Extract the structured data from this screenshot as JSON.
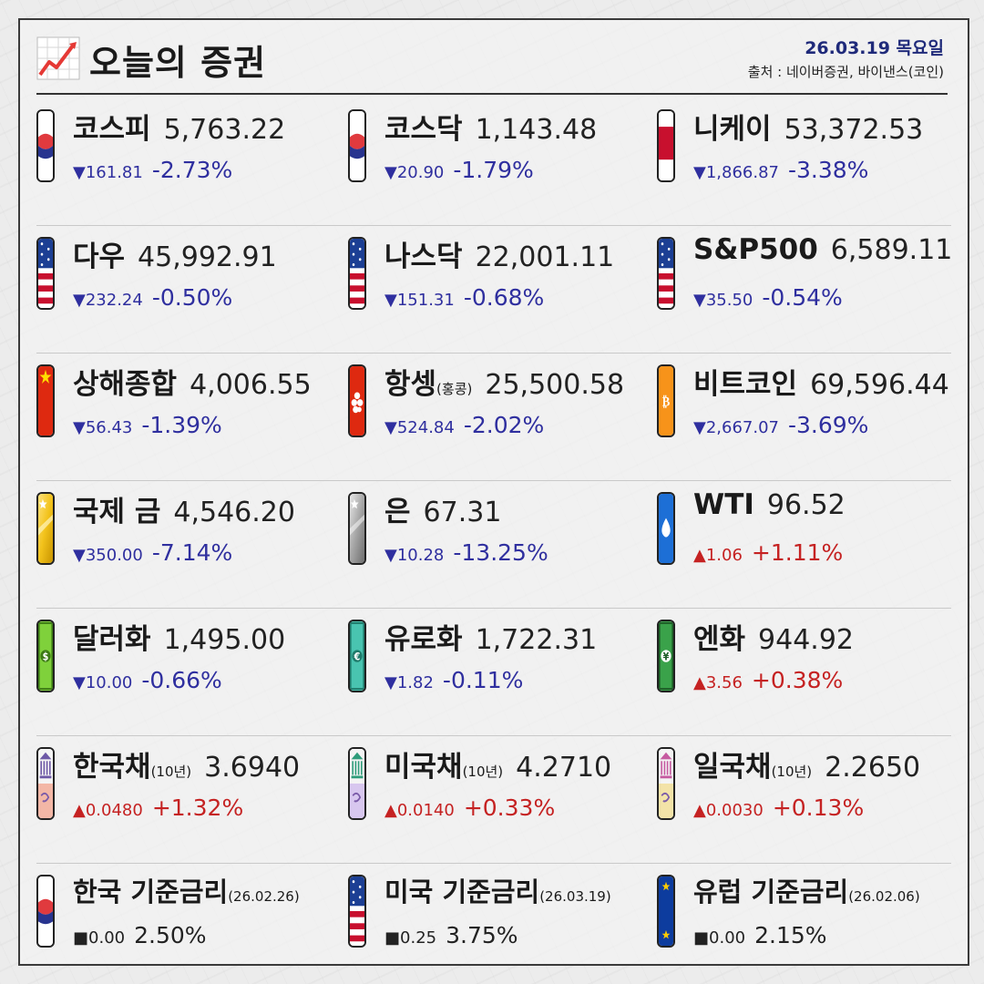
{
  "header": {
    "title": "오늘의 증권",
    "date": "26.03.19 목요일",
    "source": "출처 : 네이버증권, 바이낸스(코인)"
  },
  "rows": [
    [
      {
        "name": "코스피",
        "sub": "",
        "value": "5,763.22",
        "dir": "down",
        "arrow": "▼",
        "change": "161.81",
        "pct": "-2.73%",
        "flag": "kr"
      },
      {
        "name": "코스닥",
        "sub": "",
        "value": "1,143.48",
        "dir": "down",
        "arrow": "▼",
        "change": "20.90",
        "pct": "-1.79%",
        "flag": "kr"
      },
      {
        "name": "니케이",
        "sub": "",
        "value": "53,372.53",
        "dir": "down",
        "arrow": "▼",
        "change": "1,866.87",
        "pct": "-3.38%",
        "flag": "jp"
      }
    ],
    [
      {
        "name": "다우",
        "sub": "",
        "value": "45,992.91",
        "dir": "down",
        "arrow": "▼",
        "change": "232.24",
        "pct": "-0.50%",
        "flag": "us"
      },
      {
        "name": "나스닥",
        "sub": "",
        "value": "22,001.11",
        "dir": "down",
        "arrow": "▼",
        "change": "151.31",
        "pct": "-0.68%",
        "flag": "us"
      },
      {
        "name": "S&P500",
        "sub": "",
        "value": "6,589.11",
        "dir": "down",
        "arrow": "▼",
        "change": "35.50",
        "pct": "-0.54%",
        "flag": "us"
      }
    ],
    [
      {
        "name": "상해종합",
        "sub": "",
        "value": "4,006.55",
        "dir": "down",
        "arrow": "▼",
        "change": "56.43",
        "pct": "-1.39%",
        "flag": "cn"
      },
      {
        "name": "항셍",
        "sub": "(홍콩)",
        "value": "25,500.58",
        "dir": "down",
        "arrow": "▼",
        "change": "524.84",
        "pct": "-2.02%",
        "flag": "hk"
      },
      {
        "name": "비트코인",
        "sub": "",
        "value": "69,596.44",
        "dir": "down",
        "arrow": "▼",
        "change": "2,667.07",
        "pct": "-3.69%",
        "flag": "btc"
      }
    ],
    [
      {
        "name": "국제 금",
        "sub": "",
        "value": "4,546.20",
        "dir": "down",
        "arrow": "▼",
        "change": "350.00",
        "pct": "-7.14%",
        "flag": "gold"
      },
      {
        "name": "은",
        "sub": "",
        "value": "67.31",
        "dir": "down",
        "arrow": "▼",
        "change": "10.28",
        "pct": "-13.25%",
        "flag": "silver"
      },
      {
        "name": "WTI",
        "sub": "",
        "value": "96.52",
        "dir": "up",
        "arrow": "▲",
        "change": "1.06",
        "pct": "+1.11%",
        "flag": "oil"
      }
    ],
    [
      {
        "name": "달러화",
        "sub": "",
        "value": "1,495.00",
        "dir": "down",
        "arrow": "▼",
        "change": "10.00",
        "pct": "-0.66%",
        "flag": "usd"
      },
      {
        "name": "유로화",
        "sub": "",
        "value": "1,722.31",
        "dir": "down",
        "arrow": "▼",
        "change": "1.82",
        "pct": "-0.11%",
        "flag": "eur"
      },
      {
        "name": "엔화",
        "sub": "",
        "value": "944.92",
        "dir": "up",
        "arrow": "▲",
        "change": "3.56",
        "pct": "+0.38%",
        "flag": "jpy"
      }
    ],
    [
      {
        "name": "한국채",
        "sub": "(10년)",
        "value": "3.6940",
        "dir": "up",
        "arrow": "▲",
        "change": "0.0480",
        "pct": "+1.32%",
        "flag": "bondkr"
      },
      {
        "name": "미국채",
        "sub": "(10년)",
        "value": "4.2710",
        "dir": "up",
        "arrow": "▲",
        "change": "0.0140",
        "pct": "+0.33%",
        "flag": "bondus"
      },
      {
        "name": "일국채",
        "sub": "(10년)",
        "value": "2.2650",
        "dir": "up",
        "arrow": "▲",
        "change": "0.0030",
        "pct": "+0.13%",
        "flag": "bondjp"
      }
    ],
    [
      {
        "name": "한국 기준금리",
        "sub": "(26.02.26)",
        "value": "",
        "dir": "flat",
        "arrow": "■",
        "change": "0.00",
        "pct": "2.50%",
        "flag": "kr"
      },
      {
        "name": "미국 기준금리",
        "sub": "(26.03.19)",
        "value": "",
        "dir": "flat",
        "arrow": "■",
        "change": "0.25",
        "pct": "3.75%",
        "flag": "us"
      },
      {
        "name": "유럽 기준금리",
        "sub": "(26.02.06)",
        "value": "",
        "dir": "flat",
        "arrow": "■",
        "change": "0.00",
        "pct": "2.15%",
        "flag": "eu"
      }
    ]
  ],
  "colors": {
    "down": "#2f2f9f",
    "up": "#c52222",
    "kr_red": "#e03a3e",
    "kr_blue": "#28348f",
    "us_red": "#c8102e",
    "us_blue": "#1c3f94",
    "cn_red": "#de2910",
    "btc_orange": "#f7931a",
    "gold": "#f2c21b",
    "silver": "#a6a6a6",
    "oil_blue": "#1d6fd6",
    "money_green": "#7fd13b",
    "euro_teal": "#49c4b0",
    "yen_green": "#3aa24a",
    "eu_blue": "#0d3c9e"
  }
}
